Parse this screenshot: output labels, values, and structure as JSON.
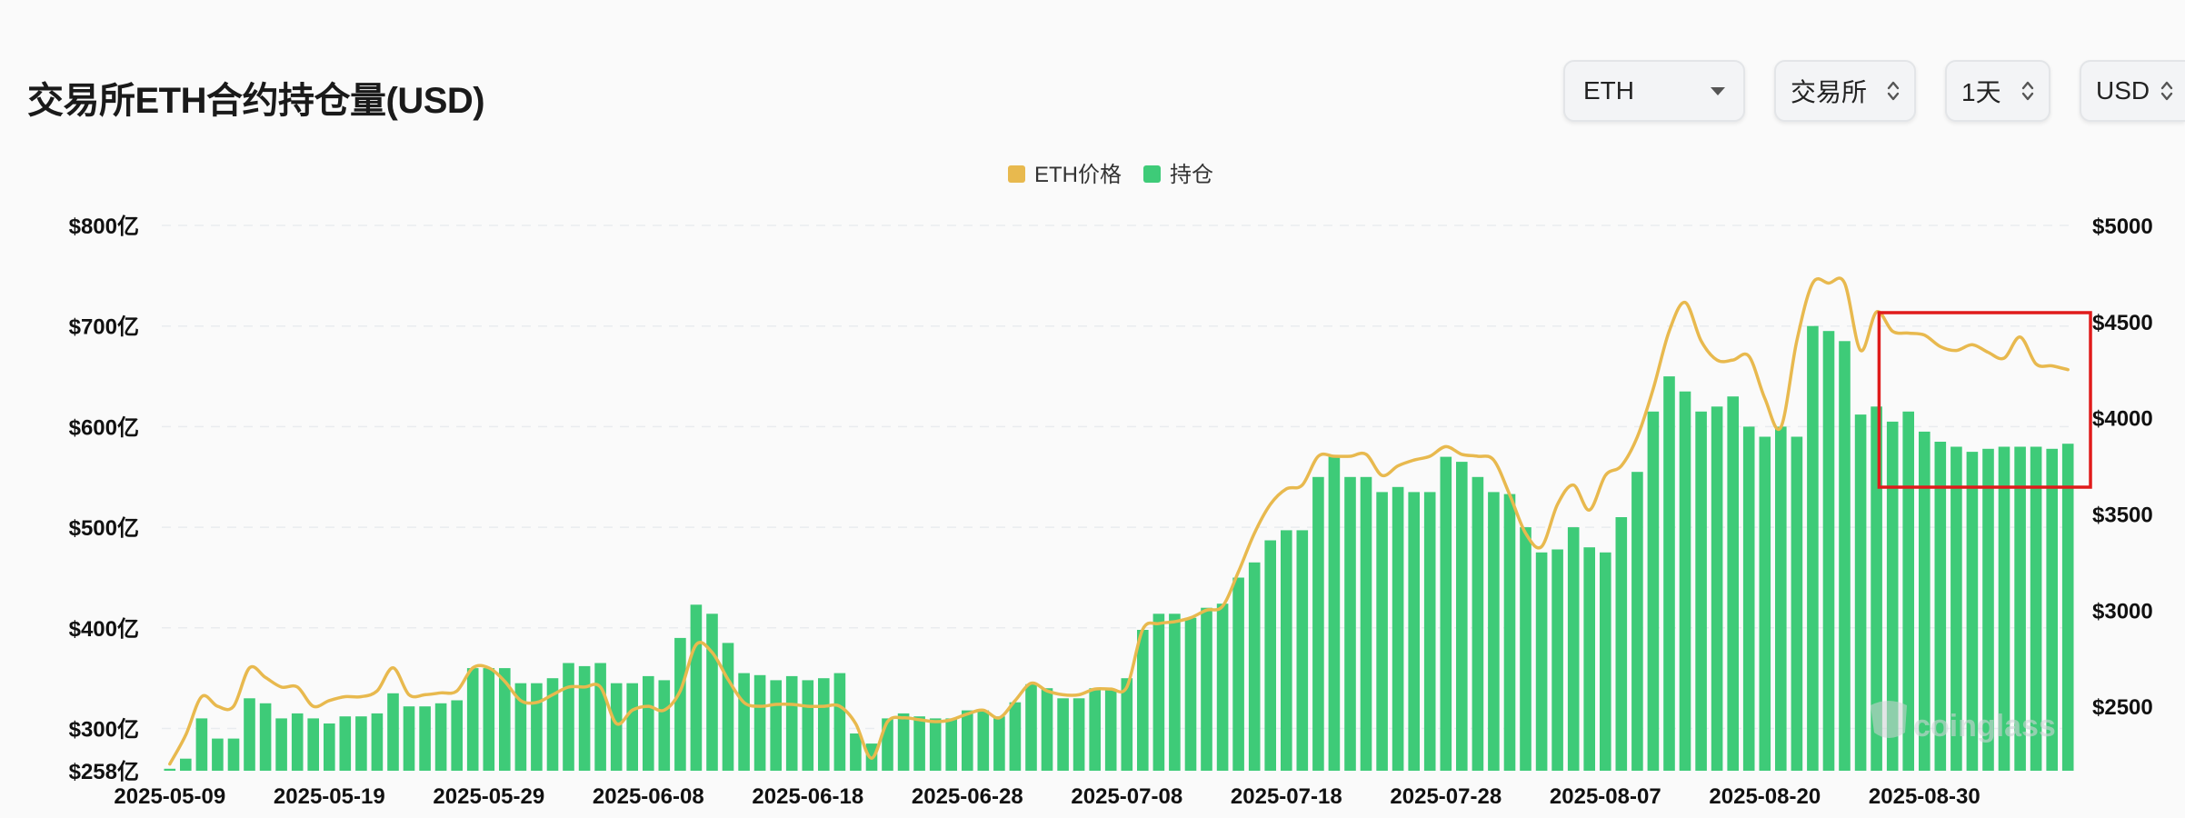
{
  "header": {
    "title": "交易所ETH合约持仓量(USD)",
    "selectors": {
      "coin": "ETH",
      "exchange": "交易所",
      "interval": "1天",
      "currency": "USD"
    }
  },
  "watermark": "coinglass",
  "colors": {
    "price_line": "#e8b94e",
    "oi_bar": "#3ecb78",
    "highlight_box": "#e01b1b",
    "grid": "#e9ecef"
  },
  "chart_data": {
    "type": "bar",
    "legend": {
      "placement": "top-center",
      "entries": [
        "ETH价格",
        "持仓"
      ]
    },
    "x_tick_labels": [
      "2025-05-09",
      "2025-05-19",
      "2025-05-29",
      "2025-06-08",
      "2025-06-18",
      "2025-06-28",
      "2025-07-08",
      "2025-07-18",
      "2025-07-28",
      "2025-08-07",
      "2025-08-20",
      "2025-08-30"
    ],
    "y_left": {
      "tick_labels": [
        "$258亿",
        "$300亿",
        "$400亿",
        "$500亿",
        "$600亿",
        "$700亿",
        "$800亿"
      ],
      "tick_values": [
        258,
        300,
        400,
        500,
        600,
        700,
        800
      ],
      "range": [
        258,
        800
      ],
      "unit": "亿 USD"
    },
    "y_right": {
      "tick_labels": [
        "$2500",
        "$3000",
        "$3500",
        "$4000",
        "$4500",
        "$5000"
      ],
      "tick_values": [
        2500,
        3000,
        3500,
        4000,
        4500,
        5000
      ],
      "range": [
        2165,
        5000
      ],
      "unit": "USD"
    },
    "grid": true,
    "series": [
      {
        "name": "持仓",
        "type": "bar",
        "axis": "left",
        "values": [
          260,
          270,
          310,
          290,
          290,
          330,
          325,
          310,
          315,
          310,
          305,
          312,
          312,
          315,
          335,
          322,
          322,
          325,
          328,
          360,
          360,
          360,
          345,
          345,
          350,
          365,
          362,
          365,
          345,
          345,
          352,
          348,
          390,
          423,
          414,
          385,
          355,
          353,
          348,
          352,
          348,
          350,
          355,
          295,
          285,
          310,
          315,
          312,
          310,
          310,
          318,
          318,
          312,
          326,
          344,
          340,
          330,
          330,
          340,
          338,
          350,
          398,
          414,
          414,
          410,
          420,
          424,
          450,
          465,
          487,
          497,
          497,
          550,
          570,
          550,
          550,
          535,
          540,
          535,
          535,
          570,
          565,
          550,
          535,
          533,
          500,
          475,
          478,
          500,
          480,
          475,
          510,
          555,
          615,
          650,
          635,
          615,
          620,
          630,
          600,
          590,
          600,
          590,
          700,
          695,
          685,
          612,
          620,
          605,
          615,
          595,
          585,
          580,
          575,
          578,
          580,
          580,
          580,
          578,
          583
        ]
      },
      {
        "name": "ETH价格",
        "type": "line",
        "axis": "right",
        "values": [
          2200,
          2350,
          2550,
          2500,
          2500,
          2700,
          2650,
          2600,
          2600,
          2500,
          2530,
          2550,
          2550,
          2580,
          2700,
          2560,
          2560,
          2570,
          2580,
          2700,
          2700,
          2630,
          2530,
          2520,
          2560,
          2600,
          2600,
          2600,
          2410,
          2480,
          2500,
          2480,
          2580,
          2820,
          2780,
          2640,
          2520,
          2500,
          2510,
          2510,
          2500,
          2500,
          2500,
          2410,
          2230,
          2420,
          2440,
          2430,
          2420,
          2430,
          2460,
          2480,
          2440,
          2530,
          2620,
          2580,
          2560,
          2560,
          2590,
          2590,
          2600,
          2900,
          2930,
          2940,
          2960,
          3000,
          3020,
          3200,
          3400,
          3550,
          3630,
          3650,
          3800,
          3800,
          3800,
          3810,
          3700,
          3750,
          3780,
          3800,
          3850,
          3810,
          3800,
          3780,
          3600,
          3400,
          3330,
          3550,
          3650,
          3520,
          3700,
          3750,
          3900,
          4150,
          4450,
          4600,
          4400,
          4300,
          4300,
          4320,
          4100,
          3950,
          4400,
          4700,
          4700,
          4700,
          4350,
          4550,
          4450,
          4440,
          4430,
          4370,
          4350,
          4380,
          4340,
          4310,
          4420,
          4280,
          4270,
          4250
        ]
      }
    ],
    "annotation": {
      "type": "box",
      "spans_last_n_bars": 12
    }
  }
}
